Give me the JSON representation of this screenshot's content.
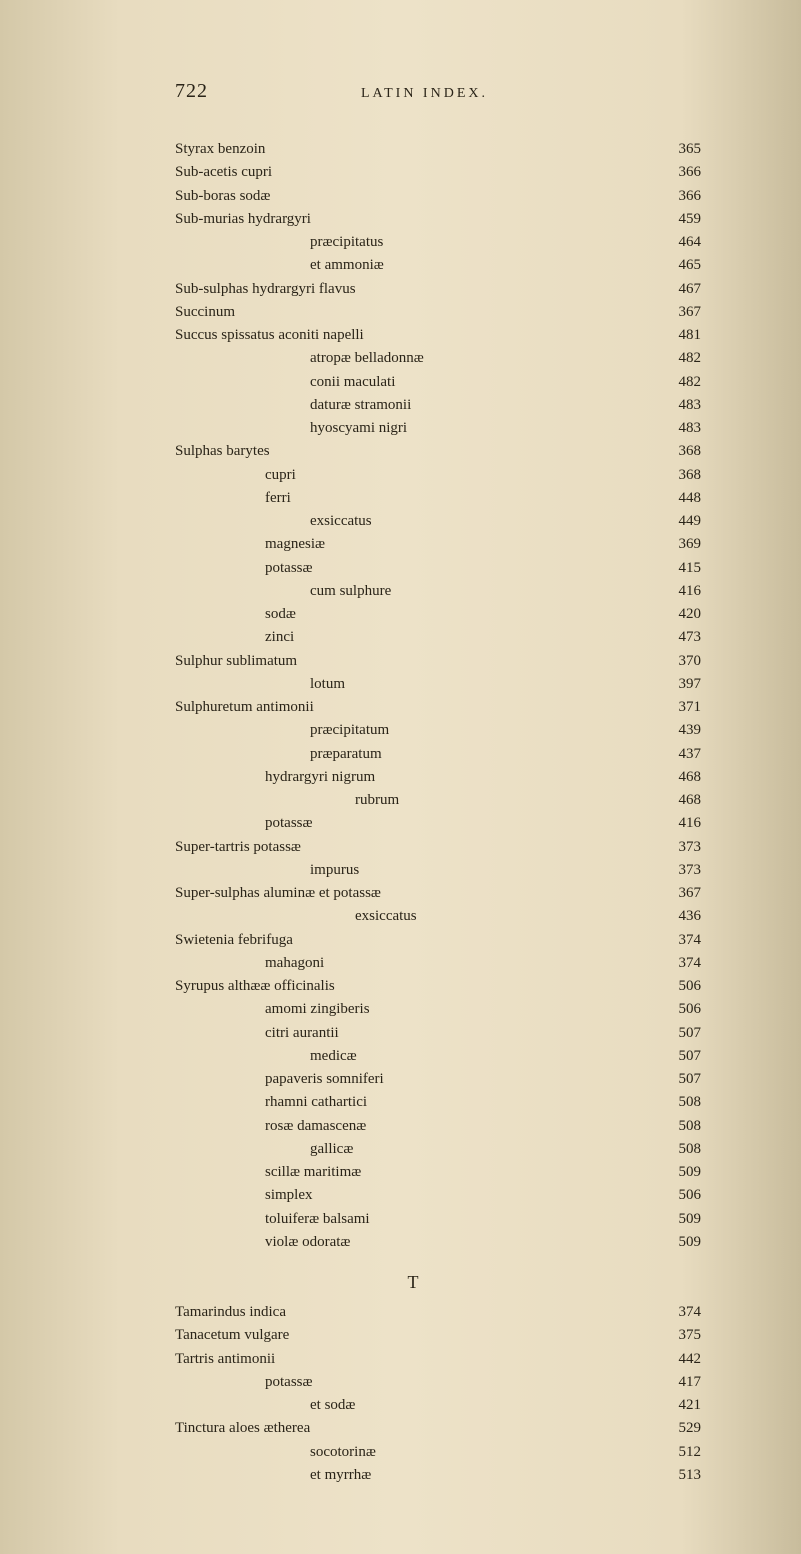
{
  "page_number": "722",
  "header_title": "LATIN INDEX.",
  "section_letter": "T",
  "entries": [
    {
      "label": "Styrax benzoin",
      "page": "365",
      "indent": 0
    },
    {
      "label": "Sub-acetis cupri",
      "page": "366",
      "indent": 0
    },
    {
      "label": "Sub-boras sodæ",
      "page": "366",
      "indent": 0
    },
    {
      "label": "Sub-murias hydrargyri",
      "page": "459",
      "indent": 0
    },
    {
      "label": "præcipitatus",
      "page": "464",
      "indent": 3
    },
    {
      "label": "et ammoniæ",
      "page": "465",
      "indent": 3
    },
    {
      "label": "Sub-sulphas hydrargyri flavus",
      "page": "467",
      "indent": 0
    },
    {
      "label": "Succinum",
      "page": "367",
      "indent": 0
    },
    {
      "label": "Succus spissatus aconiti napelli",
      "page": "481",
      "indent": 0
    },
    {
      "label": "atropæ belladonnæ",
      "page": "482",
      "indent": 3
    },
    {
      "label": "conii maculati",
      "page": "482",
      "indent": 3
    },
    {
      "label": "daturæ stramonii",
      "page": "483",
      "indent": 3
    },
    {
      "label": "hyoscyami nigri",
      "page": "483",
      "indent": 3
    },
    {
      "label": "Sulphas barytes",
      "page": "368",
      "indent": 0
    },
    {
      "label": "cupri",
      "page": "368",
      "indent": 2
    },
    {
      "label": "ferri",
      "page": "448",
      "indent": 2
    },
    {
      "label": "exsiccatus",
      "page": "449",
      "indent": 3
    },
    {
      "label": "magnesiæ",
      "page": "369",
      "indent": 2
    },
    {
      "label": "potassæ",
      "page": "415",
      "indent": 2
    },
    {
      "label": "cum sulphure",
      "page": "416",
      "indent": 3
    },
    {
      "label": "sodæ",
      "page": "420",
      "indent": 2
    },
    {
      "label": "zinci",
      "page": "473",
      "indent": 2
    },
    {
      "label": "Sulphur sublimatum",
      "page": "370",
      "indent": 0
    },
    {
      "label": "lotum",
      "page": "397",
      "indent": 3
    },
    {
      "label": "Sulphuretum antimonii",
      "page": "371",
      "indent": 0
    },
    {
      "label": "præcipitatum",
      "page": "439",
      "indent": 3
    },
    {
      "label": "præparatum",
      "page": "437",
      "indent": 3
    },
    {
      "label": "hydrargyri nigrum",
      "page": "468",
      "indent": 2
    },
    {
      "label": "rubrum",
      "page": "468",
      "indent": 4
    },
    {
      "label": "potassæ",
      "page": "416",
      "indent": 2
    },
    {
      "label": "Super-tartris potassæ",
      "page": "373",
      "indent": 0
    },
    {
      "label": "impurus",
      "page": "373",
      "indent": 3
    },
    {
      "label": "Super-sulphas aluminæ et potassæ",
      "page": "367",
      "indent": 0
    },
    {
      "label": "exsiccatus",
      "page": "436",
      "indent": 4
    },
    {
      "label": "Swietenia febrifuga",
      "page": "374",
      "indent": 0
    },
    {
      "label": "mahagoni",
      "page": "374",
      "indent": 2
    },
    {
      "label": "Syrupus althææ officinalis",
      "page": "506",
      "indent": 0
    },
    {
      "label": "amomi zingiberis",
      "page": "506",
      "indent": 2
    },
    {
      "label": "citri aurantii",
      "page": "507",
      "indent": 2
    },
    {
      "label": "medicæ",
      "page": "507",
      "indent": 3
    },
    {
      "label": "papaveris somniferi",
      "page": "507",
      "indent": 2
    },
    {
      "label": "rhamni cathartici",
      "page": "508",
      "indent": 2
    },
    {
      "label": "rosæ damascenæ",
      "page": "508",
      "indent": 2
    },
    {
      "label": "gallicæ",
      "page": "508",
      "indent": 3
    },
    {
      "label": "scillæ maritimæ",
      "page": "509",
      "indent": 2
    },
    {
      "label": "simplex",
      "page": "506",
      "indent": 2
    },
    {
      "label": "toluiferæ balsami",
      "page": "509",
      "indent": 2
    },
    {
      "label": "violæ odoratæ",
      "page": "509",
      "indent": 2
    }
  ],
  "entries_t": [
    {
      "label": "Tamarindus indica",
      "page": "374",
      "indent": 0
    },
    {
      "label": "Tanacetum vulgare",
      "page": "375",
      "indent": 0
    },
    {
      "label": "Tartris antimonii",
      "page": "442",
      "indent": 0
    },
    {
      "label": "potassæ",
      "page": "417",
      "indent": 2
    },
    {
      "label": "et sodæ",
      "page": "421",
      "indent": 3
    },
    {
      "label": "Tinctura aloes ætherea",
      "page": "529",
      "indent": 0
    },
    {
      "label": "socotorinæ",
      "page": "512",
      "indent": 3
    },
    {
      "label": "et myrrhæ",
      "page": "513",
      "indent": 3
    }
  ],
  "colors": {
    "text": "#2a2418",
    "background_light": "#ede2c8",
    "background_dark": "#d4c8a8"
  },
  "typography": {
    "body_font_size": 15,
    "page_number_font_size": 20,
    "header_font_size": 14,
    "line_height": 1.55
  }
}
